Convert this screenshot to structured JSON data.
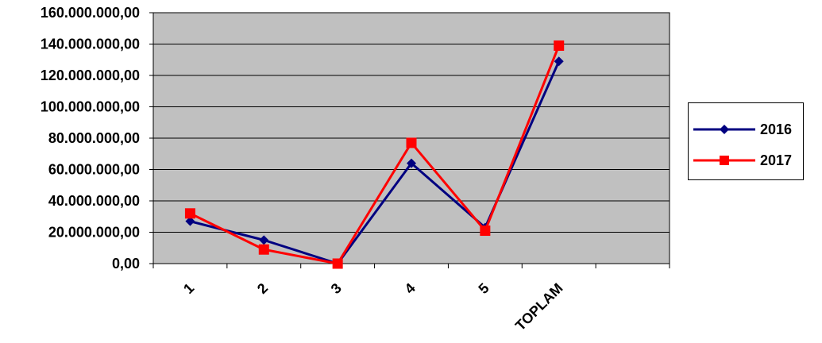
{
  "chart_data": {
    "type": "line",
    "categories": [
      "1",
      "2",
      "3",
      "4",
      "5",
      "TOPLAM"
    ],
    "extra_category_slots": 1,
    "y_ticks": [
      "0,00",
      "20.000.000,00",
      "40.000.000,00",
      "60.000.000,00",
      "80.000.000,00",
      "100.000.000,00",
      "120.000.000,00",
      "140.000.000,00",
      "160.000.000,00"
    ],
    "ylim": [
      0,
      160000000
    ],
    "grid": "horizontal",
    "plot_background": "#c0c0c0",
    "legend_position": "right",
    "series": [
      {
        "name": "2016",
        "color": "#000080",
        "marker": "diamond",
        "values": [
          27000000,
          15000000,
          0,
          64000000,
          23000000,
          129000000
        ]
      },
      {
        "name": "2017",
        "color": "#ff0000",
        "marker": "square",
        "values": [
          32000000,
          9000000,
          0,
          77000000,
          21000000,
          139000000
        ]
      }
    ]
  }
}
